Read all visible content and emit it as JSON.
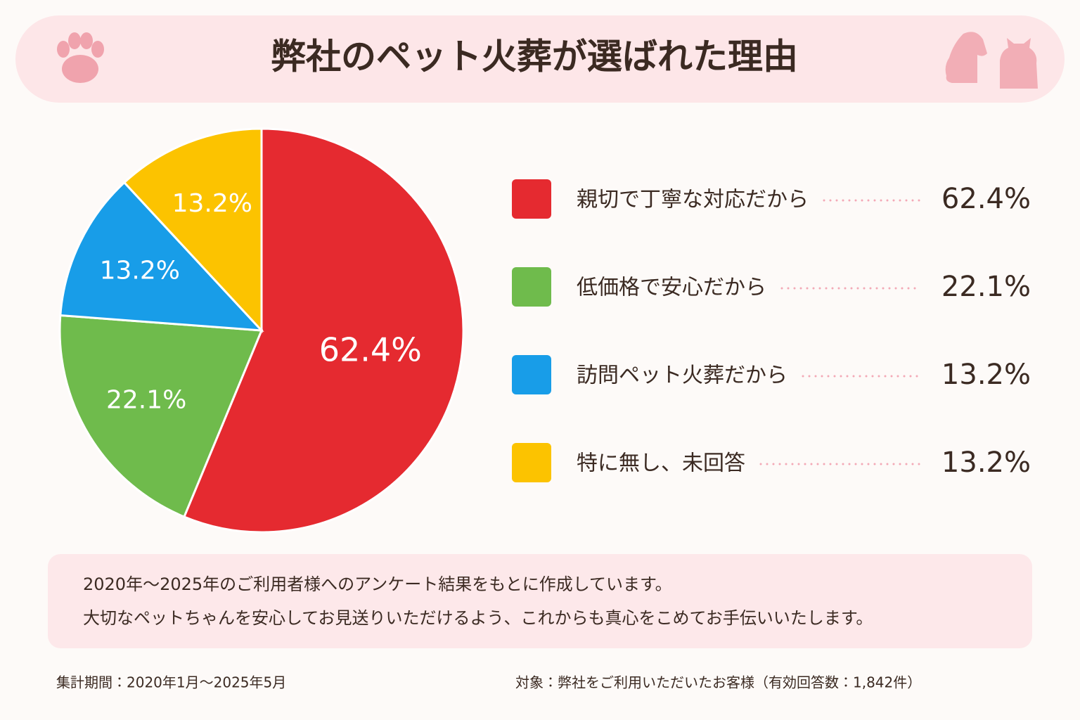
{
  "chart_data": {
    "type": "pie",
    "title": "弊社のペット火葬が選ばれた理由",
    "categories": [
      "親切で丁寧な対応だから",
      "低価格で安心だから",
      "訪問ペット火葬だから",
      "特に無し、未回答"
    ],
    "values": [
      62.4,
      22.1,
      13.2,
      13.2
    ],
    "value_labels": [
      "62.4%",
      "22.1%",
      "13.2%",
      "13.2%"
    ],
    "colors": [
      "#e52a30",
      "#6fbb4c",
      "#189de8",
      "#fcc300"
    ]
  },
  "note": {
    "lines": [
      "2020年～2025年のご利用者様へのアンケート結果をもとに作成しています。",
      "大切なペットちゃんを安心してお見送りいただけるよう、これからも真心をこめてお手伝いいたします。"
    ]
  },
  "footer": {
    "period": "集計期間：2020年1月～2025年5月",
    "target": "対象：弊社をご利用いただいたお客様（有効回答数：1,842件）"
  }
}
